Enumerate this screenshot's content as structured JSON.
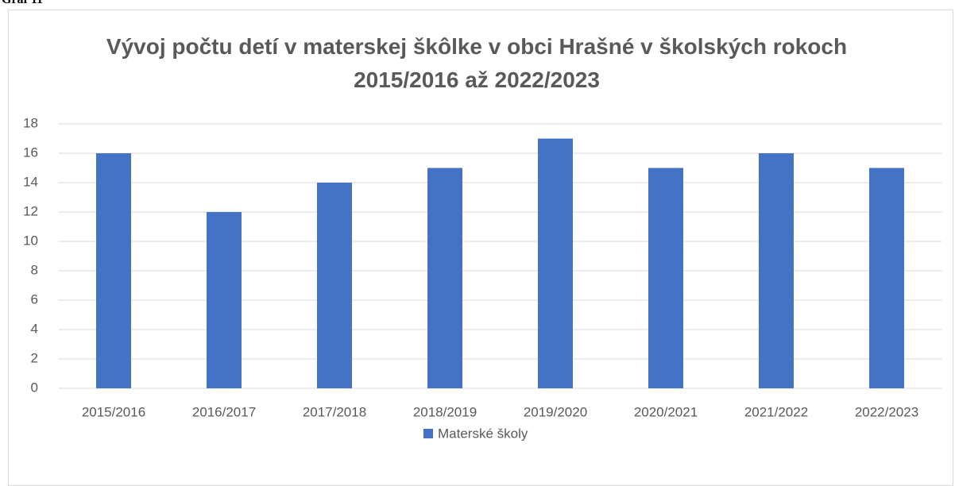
{
  "caption": "Graf 11",
  "chart_data": {
    "type": "bar",
    "title": "Vývoj počtu detí v materskej škôlke v obci Hrašné v školských rokoch 2015/2016 až 2022/2023",
    "categories": [
      "2015/2016",
      "2016/2017",
      "2017/2018",
      "2018/2019",
      "2019/2020",
      "2020/2021",
      "2021/2022",
      "2022/2023"
    ],
    "series": [
      {
        "name": "Materské školy",
        "color": "#4472c4",
        "values": [
          16,
          12,
          14,
          15,
          17,
          15,
          16,
          15
        ]
      }
    ],
    "ylim": [
      0,
      18
    ],
    "yticks": [
      0,
      2,
      4,
      6,
      8,
      10,
      12,
      14,
      16,
      18
    ],
    "grid": true,
    "legend": "bottom"
  }
}
